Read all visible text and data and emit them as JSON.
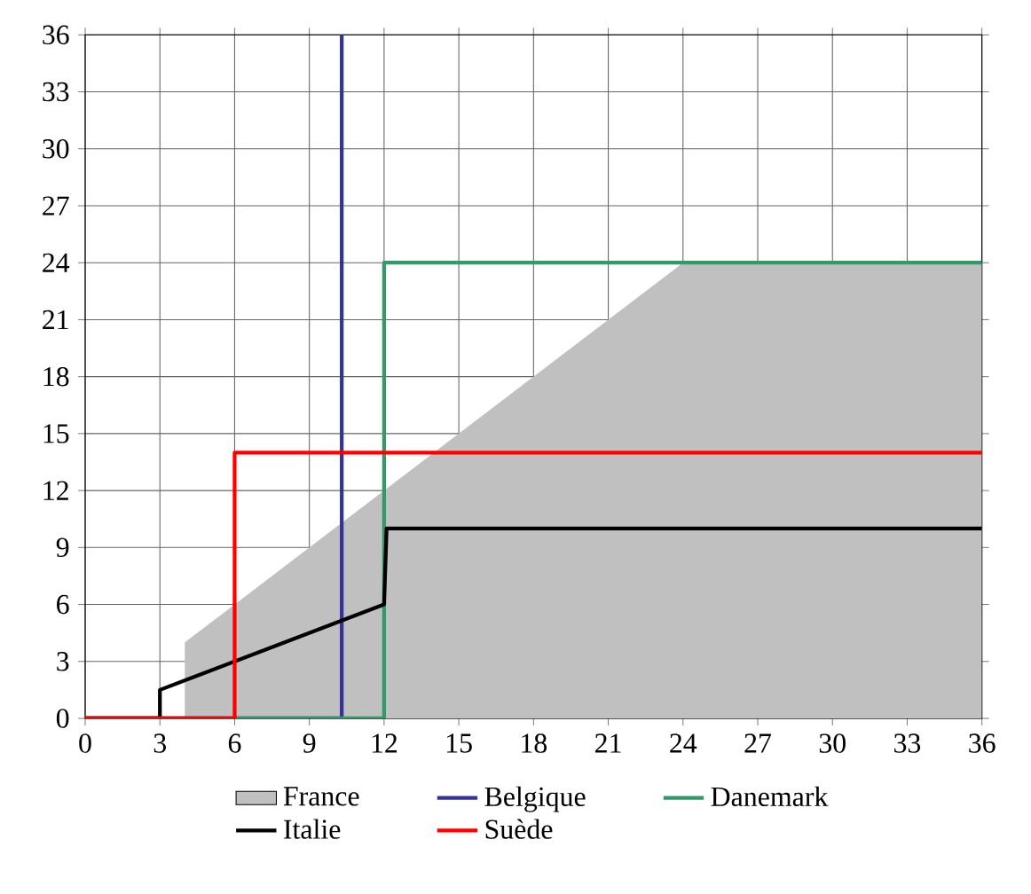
{
  "chart_data": {
    "type": "line",
    "xlim": [
      0,
      36
    ],
    "ylim": [
      0,
      36
    ],
    "xticks": [
      0,
      3,
      6,
      9,
      12,
      15,
      18,
      21,
      24,
      27,
      30,
      33,
      36
    ],
    "yticks": [
      0,
      3,
      6,
      9,
      12,
      15,
      18,
      21,
      24,
      27,
      30,
      33,
      36
    ],
    "grid": true,
    "legend": "bottom",
    "series": [
      {
        "name": "France",
        "type": "area",
        "color": "#c0c0c0",
        "x": [
          4,
          4,
          24,
          36
        ],
        "values": [
          0,
          4,
          24,
          24
        ]
      },
      {
        "name": "Belgique",
        "color": "#333399",
        "x": [
          0,
          10.3,
          10.3
        ],
        "values": [
          0,
          0,
          36
        ]
      },
      {
        "name": "Danemark",
        "color": "#339966",
        "x": [
          0,
          12,
          12,
          36
        ],
        "values": [
          0,
          0,
          24,
          24
        ]
      },
      {
        "name": "Italie",
        "color": "#000000",
        "x": [
          0,
          3,
          3,
          12,
          12.1,
          36
        ],
        "values": [
          0,
          0,
          1.5,
          6,
          10,
          10
        ]
      },
      {
        "name": "Suède",
        "color": "#ff0000",
        "x": [
          0,
          6,
          6,
          36
        ],
        "values": [
          0,
          0,
          14,
          14
        ]
      }
    ]
  }
}
